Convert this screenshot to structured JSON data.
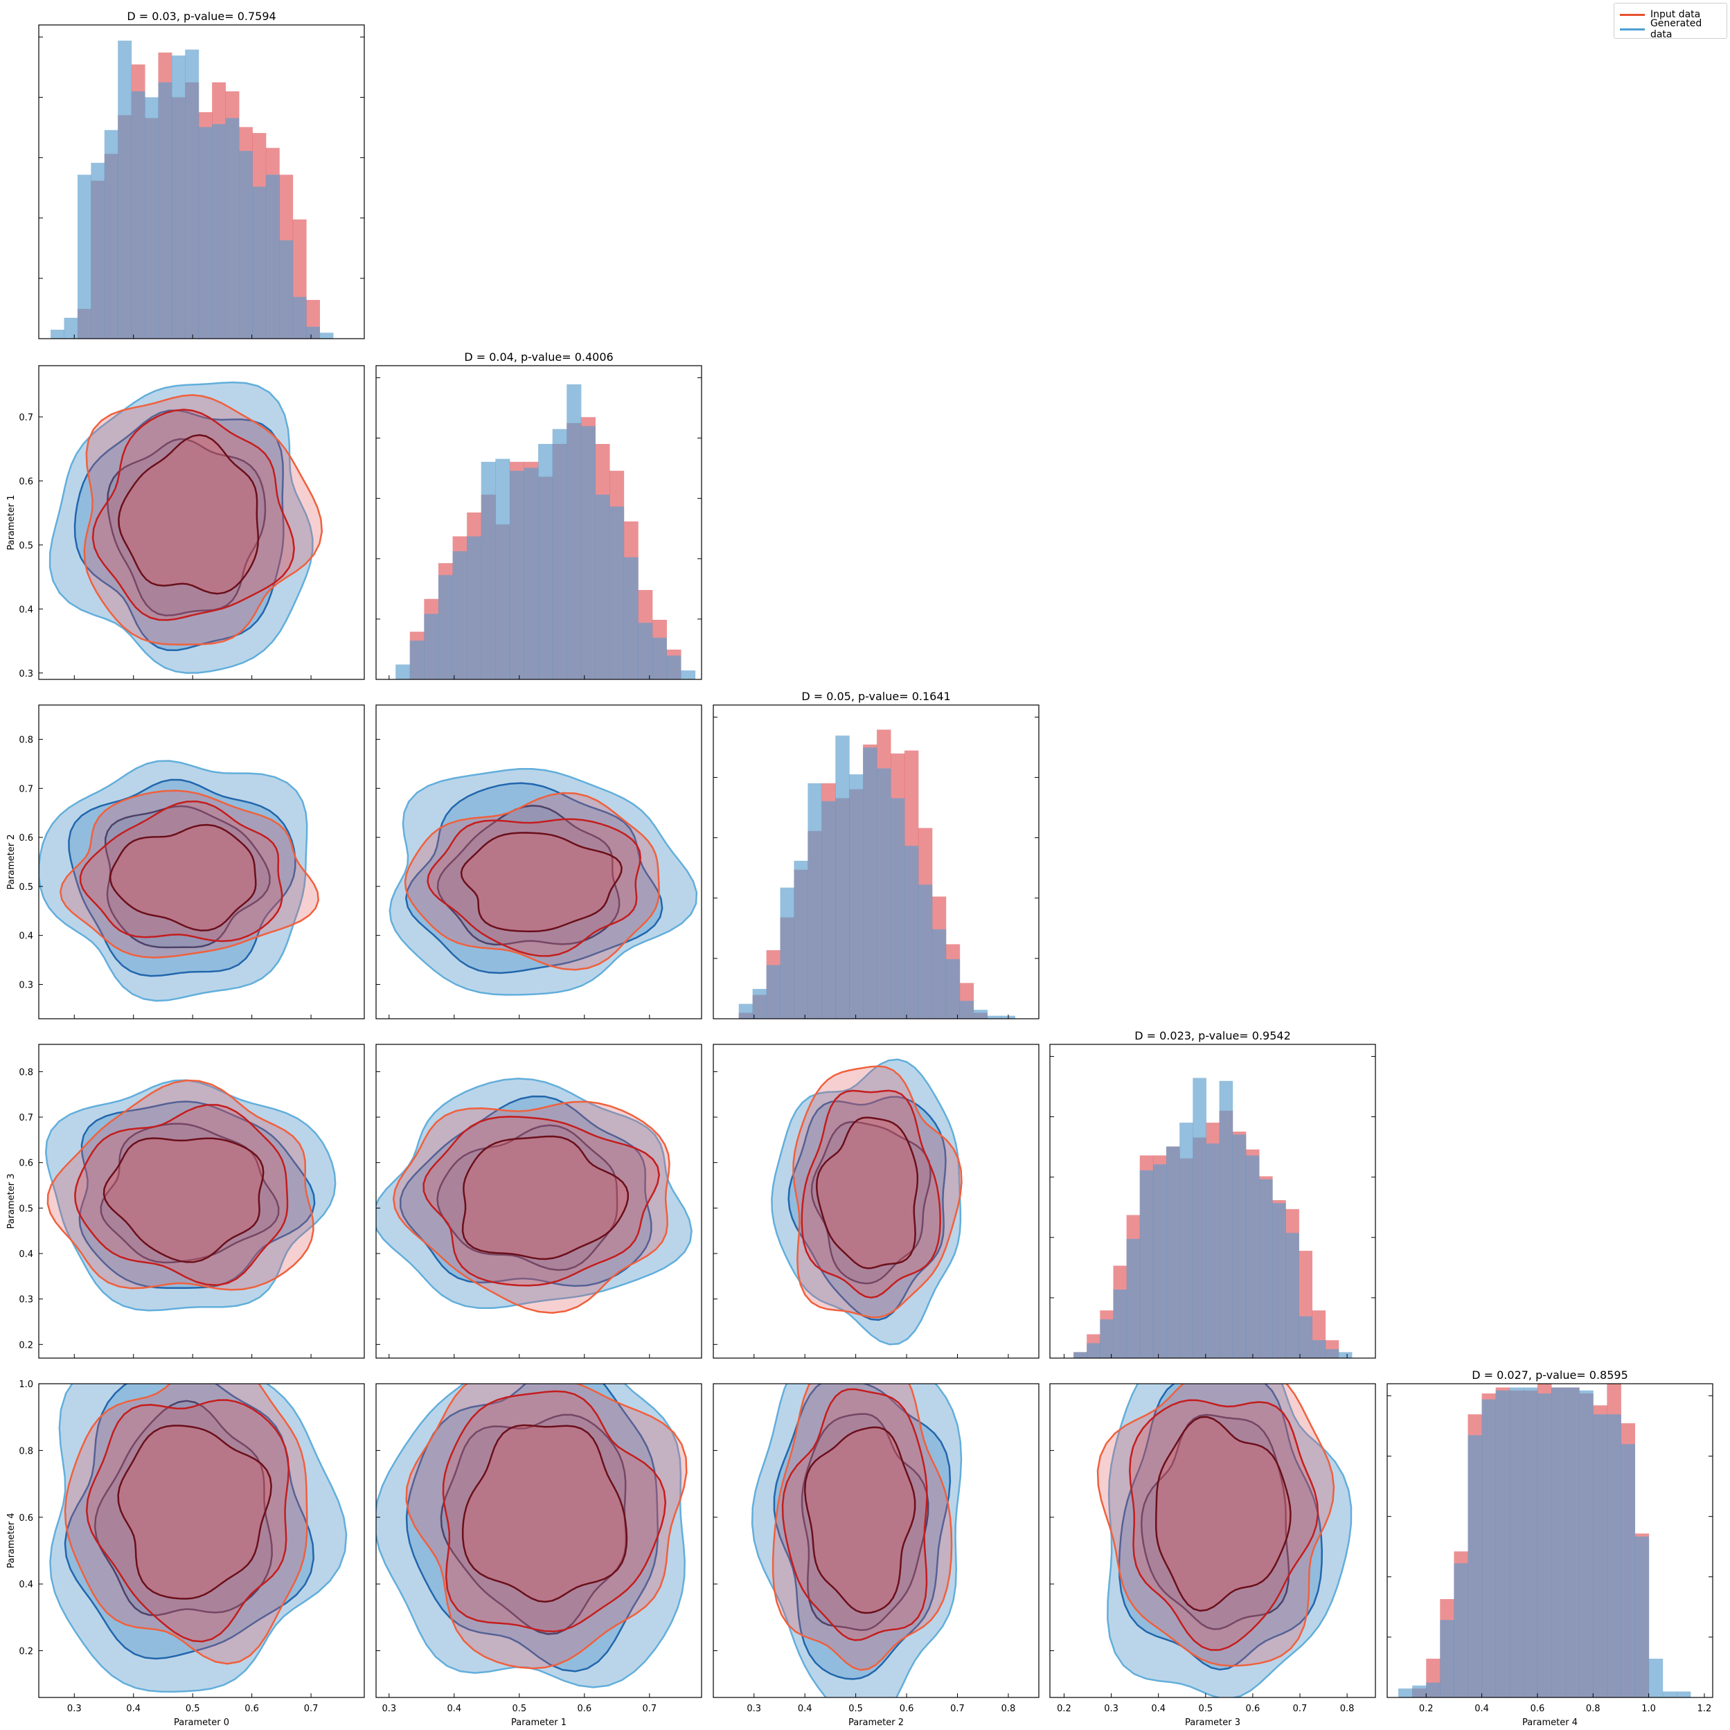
{
  "figure": {
    "legend": [
      {
        "label": "Input data",
        "color": "#e8502f"
      },
      {
        "label": "Generated data",
        "color": "#4b9fd2"
      }
    ],
    "colors": {
      "input_fill": "#e0565b",
      "generated_fill": "#5b9ccc",
      "input_line_outer": "#f0603c",
      "input_line_mid": "#c41d1d",
      "input_line_inner": "#6b0f1a",
      "gen_line_outer": "#62aedb",
      "gen_line_mid": "#2166ac",
      "gen_line_inner": "#173a6e",
      "overlap": "#8a89a6"
    }
  },
  "chart_data": {
    "type": "corner",
    "parameters": [
      "Parameter 0",
      "Parameter 1",
      "Parameter 2",
      "Parameter 3",
      "Parameter 4"
    ],
    "x_ranges": [
      [
        0.24,
        0.79
      ],
      [
        0.28,
        0.78
      ],
      [
        0.22,
        0.86
      ],
      [
        0.17,
        0.86
      ],
      [
        0.06,
        1.23
      ]
    ],
    "y_ranges": [
      null,
      [
        0.29,
        0.78
      ],
      [
        0.23,
        0.87
      ],
      [
        0.17,
        0.86
      ],
      [
        0.06,
        1.0
      ]
    ],
    "x_ticks": [
      [
        "0.3",
        "0.4",
        "0.5",
        "0.6",
        "0.7"
      ],
      [
        "0.3",
        "0.4",
        "0.5",
        "0.6",
        "0.7"
      ],
      [
        "0.3",
        "0.4",
        "0.5",
        "0.6",
        "0.7",
        "0.8"
      ],
      [
        "0.2",
        "0.3",
        "0.4",
        "0.5",
        "0.6",
        "0.7",
        "0.8"
      ],
      [
        "0.2",
        "0.4",
        "0.6",
        "0.8",
        "1.0",
        "1.2"
      ]
    ],
    "y_ticks": [
      null,
      [
        "0.3",
        "0.4",
        "0.5",
        "0.6",
        "0.7"
      ],
      [
        "0.3",
        "0.4",
        "0.5",
        "0.6",
        "0.7",
        "0.8"
      ],
      [
        "0.2",
        "0.3",
        "0.4",
        "0.5",
        "0.6",
        "0.7",
        "0.8"
      ],
      [
        "0.2",
        "0.4",
        "0.6",
        "0.8",
        "1.0"
      ]
    ],
    "diagonal": [
      {
        "title": "D = 0.03, p-value= 0.7594",
        "bins": [
          0.26,
          0.76
        ],
        "input": [
          0,
          0,
          0.1,
          0.53,
          0.62,
          0.75,
          0.92,
          0.74,
          0.96,
          0.81,
          0.86,
          0.76,
          0.86,
          0.83,
          0.71,
          0.69,
          0.64,
          0.55,
          0.4,
          0.13,
          0,
          0
        ],
        "generated": [
          0.03,
          0.07,
          0.55,
          0.59,
          0.7,
          1.0,
          0.83,
          0.81,
          0.86,
          0.95,
          0.97,
          0.71,
          0.72,
          0.74,
          0.63,
          0.51,
          0.55,
          0.33,
          0.14,
          0.04,
          0.02,
          0
        ]
      },
      {
        "title": "D = 0.04, p-value= 0.4006",
        "bins": [
          0.31,
          0.77
        ],
        "input": [
          0,
          0.16,
          0.27,
          0.39,
          0.48,
          0.56,
          0.62,
          0.52,
          0.73,
          0.73,
          0.68,
          0.79,
          0.86,
          0.88,
          0.79,
          0.7,
          0.53,
          0.3,
          0.2,
          0.1,
          0
        ],
        "generated": [
          0.05,
          0.13,
          0.22,
          0.35,
          0.43,
          0.48,
          0.73,
          0.74,
          0.7,
          0.71,
          0.79,
          0.84,
          0.99,
          0.85,
          0.62,
          0.58,
          0.41,
          0.19,
          0.14,
          0.08,
          0.03
        ]
      },
      {
        "title": "D = 0.05, p-value= 0.1641",
        "bins": [
          0.27,
          0.84
        ],
        "input": [
          0.02,
          0.08,
          0.23,
          0.34,
          0.5,
          0.63,
          0.79,
          0.74,
          0.77,
          0.92,
          0.97,
          0.89,
          0.9,
          0.64,
          0.41,
          0.25,
          0.12,
          0.02,
          0,
          0,
          0
        ],
        "generated": [
          0.05,
          0.1,
          0.18,
          0.44,
          0.53,
          0.79,
          0.73,
          0.95,
          0.82,
          0.91,
          0.84,
          0.74,
          0.58,
          0.45,
          0.3,
          0.2,
          0.06,
          0.03,
          0.01,
          0.01,
          0
        ]
      },
      {
        "title": "D = 0.023, p-value= 0.9542",
        "bins": [
          0.22,
          0.81
        ],
        "input": [
          0.02,
          0.08,
          0.16,
          0.31,
          0.48,
          0.68,
          0.68,
          0.71,
          0.67,
          0.74,
          0.79,
          0.83,
          0.76,
          0.7,
          0.61,
          0.53,
          0.5,
          0.36,
          0.16,
          0.06,
          0
        ],
        "generated": [
          0.02,
          0.05,
          0.13,
          0.23,
          0.4,
          0.63,
          0.65,
          0.71,
          0.79,
          0.94,
          0.72,
          0.93,
          0.75,
          0.68,
          0.6,
          0.52,
          0.42,
          0.14,
          0.06,
          0.03,
          0.02
        ]
      },
      {
        "title": "D = 0.027, p-value= 0.8595",
        "bins": [
          0.1,
          1.2
        ],
        "input": [
          0,
          0.03,
          0.13,
          0.33,
          0.49,
          0.95,
          1.02,
          1.04,
          1.03,
          1.03,
          1.06,
          1.04,
          1.04,
          1.02,
          0.98,
          1.06,
          0.92,
          0.55,
          0,
          0,
          0,
          0
        ],
        "generated": [
          0.03,
          0.04,
          0.05,
          0.26,
          0.45,
          0.88,
          1.0,
          1.03,
          1.04,
          1.04,
          1.02,
          1.04,
          1.04,
          1.03,
          0.95,
          0.95,
          0.85,
          0.54,
          0.13,
          0.02,
          0.02,
          0
        ]
      }
    ],
    "pairs": [
      {
        "x": 0,
        "y": 1,
        "input_center": [
          0.5,
          0.54
        ],
        "input_radius": [
          0.205,
          0.205
        ],
        "gen_center": [
          0.49,
          0.53
        ],
        "gen_radius": [
          0.215,
          0.225
        ]
      },
      {
        "x": 0,
        "y": 2,
        "input_center": [
          0.49,
          0.52
        ],
        "input_radius": [
          0.215,
          0.175
        ],
        "gen_center": [
          0.48,
          0.52
        ],
        "gen_radius": [
          0.225,
          0.24
        ]
      },
      {
        "x": 1,
        "y": 2,
        "input_center": [
          0.53,
          0.51
        ],
        "input_radius": [
          0.205,
          0.175
        ],
        "gen_center": [
          0.52,
          0.51
        ],
        "gen_radius": [
          0.225,
          0.23
        ]
      },
      {
        "x": 0,
        "y": 3,
        "input_center": [
          0.49,
          0.53
        ],
        "input_radius": [
          0.23,
          0.235
        ],
        "gen_center": [
          0.49,
          0.53
        ],
        "gen_radius": [
          0.235,
          0.25
        ]
      },
      {
        "x": 1,
        "y": 3,
        "input_center": [
          0.53,
          0.52
        ],
        "input_radius": [
          0.22,
          0.235
        ],
        "gen_center": [
          0.52,
          0.52
        ],
        "gen_radius": [
          0.23,
          0.245
        ]
      },
      {
        "x": 2,
        "y": 3,
        "input_center": [
          0.53,
          0.53
        ],
        "input_radius": [
          0.17,
          0.29
        ],
        "gen_center": [
          0.53,
          0.52
        ],
        "gen_radius": [
          0.185,
          0.29
        ]
      },
      {
        "x": 0,
        "y": 4,
        "input_center": [
          0.5,
          0.62
        ],
        "input_radius": [
          0.215,
          0.45
        ],
        "gen_center": [
          0.49,
          0.6
        ],
        "gen_radius": [
          0.24,
          0.52
        ]
      },
      {
        "x": 1,
        "y": 4,
        "input_center": [
          0.54,
          0.61
        ],
        "input_radius": [
          0.215,
          0.46
        ],
        "gen_center": [
          0.53,
          0.6
        ],
        "gen_radius": [
          0.235,
          0.52
        ]
      },
      {
        "x": 2,
        "y": 4,
        "input_center": [
          0.51,
          0.6
        ],
        "input_radius": [
          0.18,
          0.48
        ],
        "gen_center": [
          0.51,
          0.58
        ],
        "gen_radius": [
          0.2,
          0.54
        ]
      },
      {
        "x": 3,
        "y": 4,
        "input_center": [
          0.53,
          0.61
        ],
        "input_radius": [
          0.25,
          0.47
        ],
        "gen_center": [
          0.53,
          0.58
        ],
        "gen_radius": [
          0.255,
          0.53
        ]
      }
    ]
  }
}
